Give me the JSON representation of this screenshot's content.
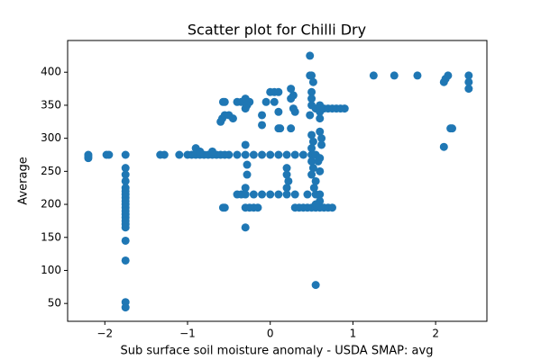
{
  "chart_data": {
    "type": "scatter",
    "title": "Scatter plot for Chilli Dry",
    "x_label": "Sub surface soil moisture anomaly - USDA SMAP: avg",
    "y_label": "Average",
    "color": "#1f77b4",
    "xlim": [
      -2.45,
      2.62
    ],
    "ylim": [
      23,
      448
    ],
    "xticks": [
      {
        "value": -2,
        "label": "−2"
      },
      {
        "value": -1,
        "label": "−1"
      },
      0,
      1,
      2
    ],
    "yticks": [
      50,
      100,
      150,
      200,
      250,
      300,
      350,
      400
    ],
    "x": [
      -2.2,
      -2.2,
      -2.2,
      -1.98,
      -1.95,
      -1.75,
      -1.75,
      -1.75,
      -1.75,
      -1.75,
      -1.75,
      -1.75,
      -1.75,
      -1.75,
      -1.75,
      -1.75,
      -1.75,
      -1.75,
      -1.75,
      -1.75,
      -1.75,
      -1.75,
      -1.75,
      -1.75,
      -1.75,
      -1.75,
      -1.33,
      -1.28,
      -1.1,
      -1.0,
      -0.95,
      -0.9,
      -0.85,
      -0.8,
      -0.75,
      -0.7,
      -0.65,
      -0.6,
      -0.55,
      -0.5,
      -0.9,
      -0.85,
      -0.7,
      -0.55,
      -0.57,
      -0.6,
      -0.58,
      -0.55,
      -0.5,
      -0.45,
      -0.55,
      -0.57,
      -0.4,
      -0.35,
      -0.3,
      -0.25,
      -0.28,
      -0.3,
      -0.3,
      -0.28,
      -0.28,
      -0.3,
      -0.3,
      -0.3,
      -0.25,
      -0.2,
      -0.15,
      -0.4,
      -0.35,
      -0.3,
      -0.2,
      -0.1,
      0.0,
      0.1,
      0.2,
      0.3,
      -0.4,
      -0.3,
      -0.2,
      -0.1,
      0.0,
      0.1,
      0.2,
      0.3,
      0.4,
      0.5,
      -0.1,
      -0.1,
      -0.05,
      0.0,
      0.05,
      0.1,
      0.05,
      0.1,
      0.1,
      0.12,
      0.2,
      0.2,
      0.22,
      0.2,
      0.25,
      0.25,
      0.28,
      0.28,
      0.3,
      0.25,
      0.3,
      0.35,
      0.4,
      0.45,
      0.5,
      0.55,
      0.6,
      0.65,
      0.7,
      0.75,
      0.45,
      0.55,
      0.6,
      0.6,
      0.55,
      0.48,
      0.48,
      0.5,
      0.52,
      0.5,
      0.5,
      0.5,
      0.48,
      0.5,
      0.52,
      0.5,
      0.55,
      0.5,
      0.52,
      0.5,
      0.55,
      0.53,
      0.55,
      0.55,
      0.6,
      0.6,
      0.6,
      0.6,
      0.62,
      0.62,
      0.6,
      0.58,
      0.6,
      0.6,
      0.65,
      0.7,
      0.75,
      0.8,
      0.85,
      0.9,
      1.25,
      1.5,
      1.78,
      2.1,
      2.12,
      2.15,
      2.1,
      2.18,
      2.2,
      2.4,
      2.4,
      2.4
    ],
    "values": [
      275,
      270,
      273,
      275,
      275,
      275,
      255,
      245,
      235,
      225,
      220,
      215,
      210,
      205,
      200,
      195,
      190,
      185,
      180,
      175,
      170,
      165,
      145,
      115,
      52,
      44,
      275,
      275,
      275,
      275,
      275,
      275,
      275,
      275,
      275,
      275,
      275,
      275,
      275,
      275,
      285,
      280,
      280,
      195,
      195,
      325,
      330,
      335,
      335,
      330,
      355,
      355,
      355,
      355,
      360,
      355,
      350,
      345,
      290,
      260,
      245,
      225,
      165,
      195,
      195,
      195,
      195,
      215,
      215,
      215,
      215,
      215,
      215,
      215,
      215,
      215,
      275,
      275,
      275,
      275,
      275,
      275,
      275,
      275,
      275,
      275,
      320,
      335,
      355,
      370,
      370,
      370,
      355,
      340,
      315,
      315,
      255,
      245,
      235,
      225,
      375,
      360,
      365,
      345,
      340,
      315,
      195,
      195,
      195,
      195,
      195,
      195,
      195,
      195,
      195,
      195,
      215,
      215,
      215,
      205,
      200,
      425,
      395,
      395,
      385,
      370,
      360,
      350,
      335,
      305,
      295,
      285,
      275,
      265,
      255,
      245,
      235,
      225,
      78,
      345,
      345,
      340,
      330,
      310,
      300,
      290,
      270,
      265,
      250,
      350,
      345,
      345,
      345,
      345,
      345,
      345,
      395,
      395,
      395,
      385,
      390,
      395,
      287,
      315,
      315,
      395,
      385,
      375
    ]
  }
}
